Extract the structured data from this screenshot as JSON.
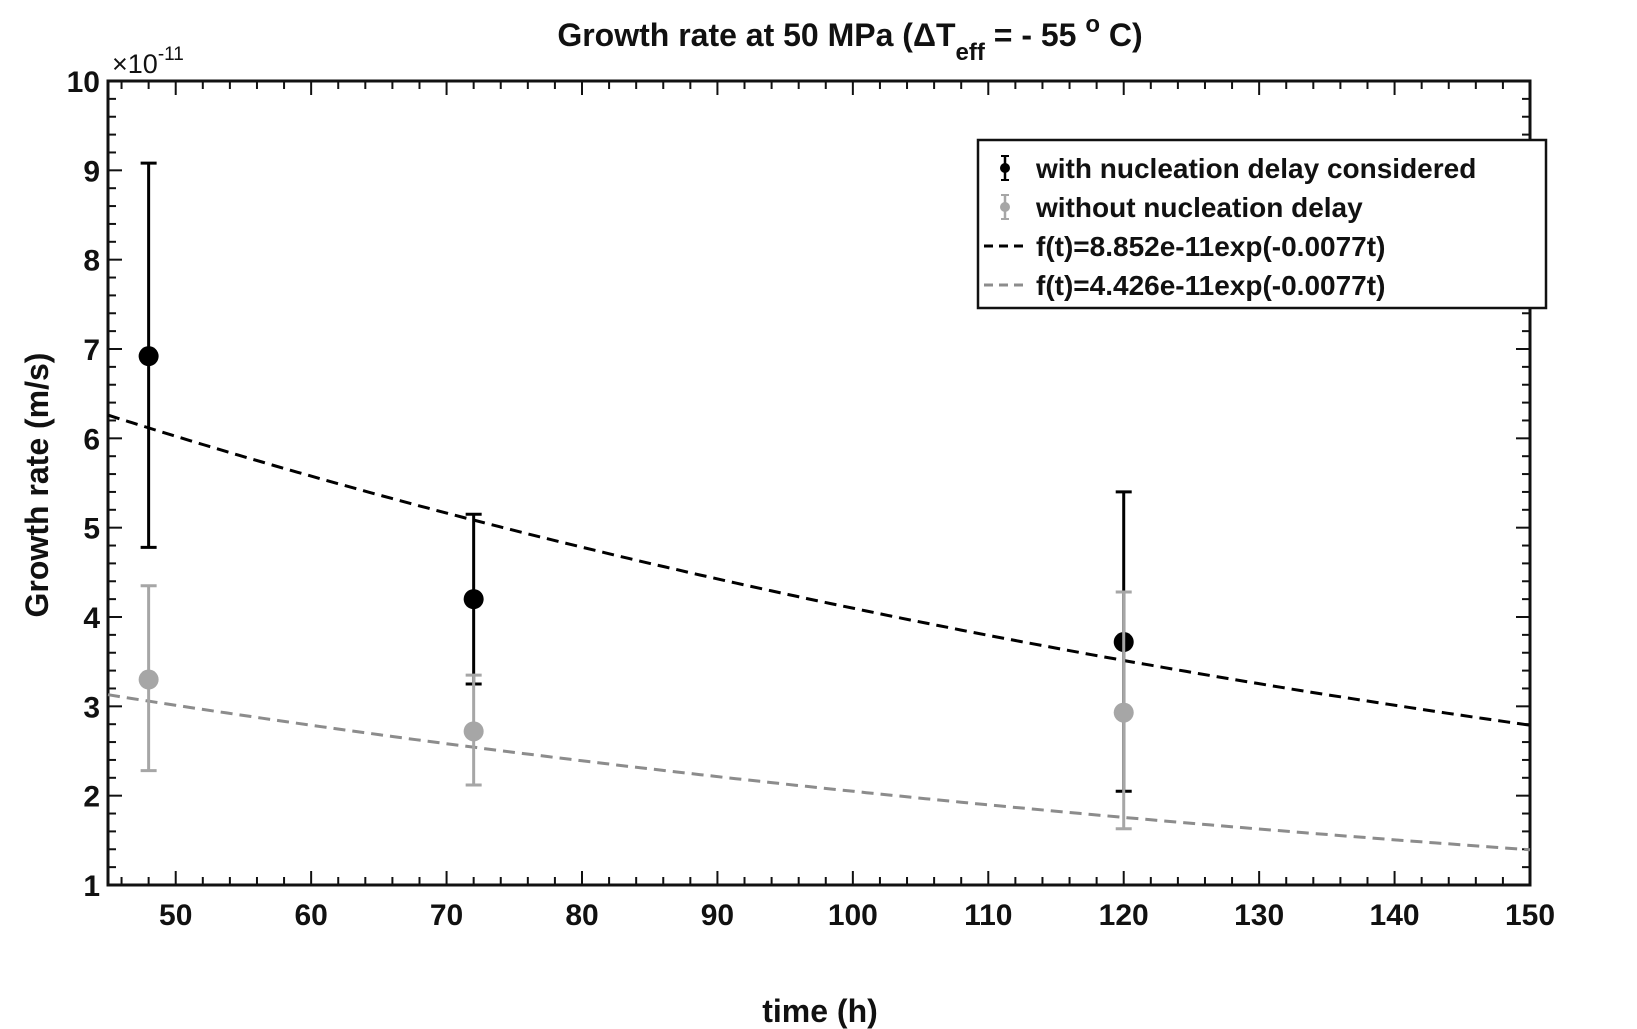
{
  "chart_data": {
    "type": "scatter",
    "title_main": "Growth rate at 50 MPa (ΔT",
    "title_sub": "eff",
    "title_mid": " = - 55 ",
    "title_sup": "o",
    "title_end": " C)",
    "xlabel": "time (h)",
    "ylabel": "Growth rate (m/s)",
    "y_multiplier": "×10",
    "y_multiplier_exp": "-11",
    "xlim": [
      45,
      150
    ],
    "ylim": [
      1,
      10
    ],
    "x_ticks": [
      50,
      60,
      70,
      80,
      90,
      100,
      110,
      120,
      130,
      140,
      150
    ],
    "y_ticks": [
      1,
      2,
      3,
      4,
      5,
      6,
      7,
      8,
      9,
      10
    ],
    "grid": false,
    "legend_position": "top-right",
    "series": [
      {
        "name": "with nucleation delay considered",
        "kind": "errorbar",
        "color": "#000000",
        "points": [
          {
            "x": 48,
            "y": 6.92,
            "lower": 4.78,
            "upper": 9.08
          },
          {
            "x": 72,
            "y": 4.2,
            "lower": 3.25,
            "upper": 5.15
          },
          {
            "x": 120,
            "y": 3.72,
            "lower": 2.05,
            "upper": 5.4
          }
        ]
      },
      {
        "name": "without nucleation delay",
        "kind": "errorbar",
        "color": "#a6a6a6",
        "points": [
          {
            "x": 48,
            "y": 3.3,
            "lower": 2.28,
            "upper": 4.35
          },
          {
            "x": 72,
            "y": 2.72,
            "lower": 2.12,
            "upper": 3.35
          },
          {
            "x": 120,
            "y": 2.93,
            "lower": 1.63,
            "upper": 4.28
          }
        ]
      },
      {
        "name": "f(t)=8.852e-11exp(-0.0077t)",
        "kind": "fit",
        "color": "#000000",
        "a": 8.852,
        "b": -0.0077
      },
      {
        "name": "f(t)=4.426e-11exp(-0.0077t)",
        "kind": "fit",
        "color": "#8c8c8c",
        "a": 4.426,
        "b": -0.0077
      }
    ]
  }
}
